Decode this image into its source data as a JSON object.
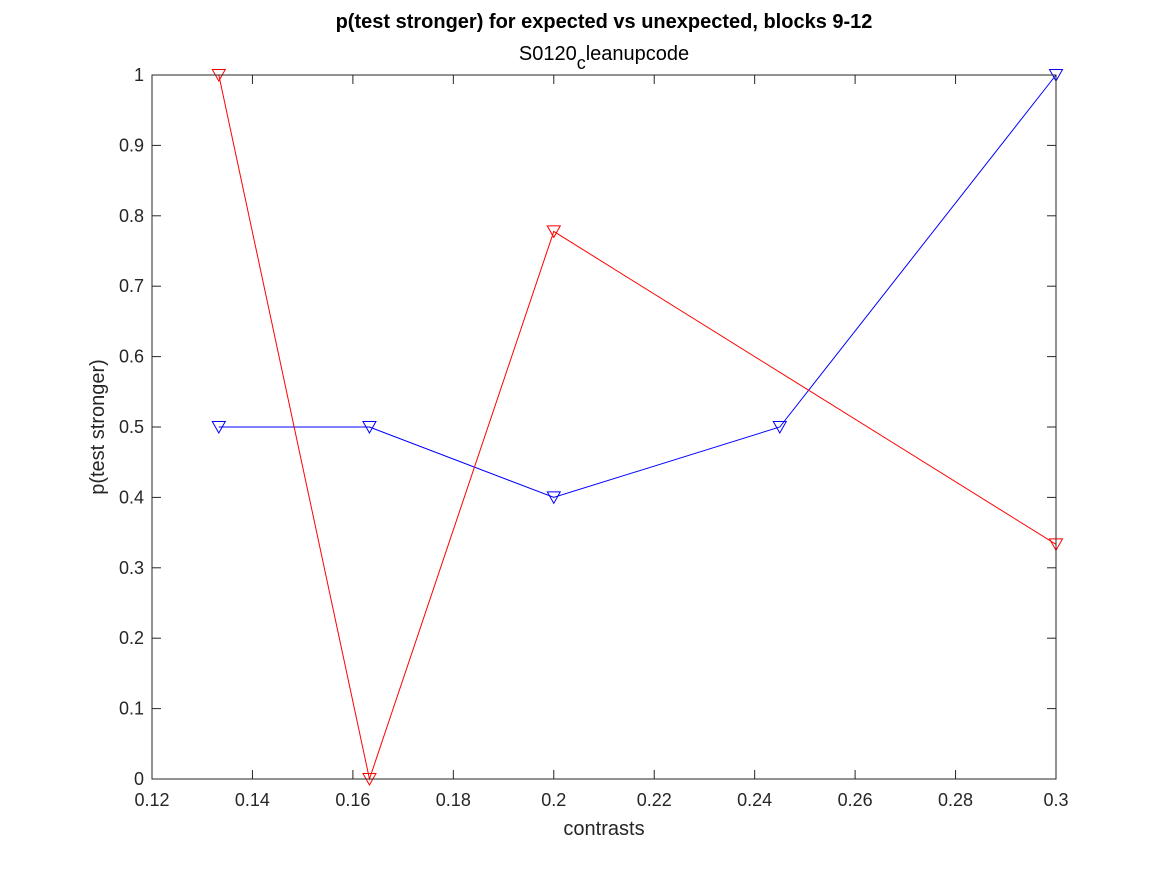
{
  "chart_data": {
    "type": "line",
    "title": "p(test stronger) for expected vs unexpected, blocks 9-12",
    "subtitle": {
      "prefix": "S0120",
      "subscript": "c",
      "suffix": "leanupcode"
    },
    "xlabel": "contrasts",
    "ylabel": "p(test stronger)",
    "xlim": [
      0.12,
      0.3
    ],
    "ylim": [
      0,
      1
    ],
    "xticks": [
      {
        "value": 0.12,
        "label": "0.12"
      },
      {
        "value": 0.14,
        "label": "0.14"
      },
      {
        "value": 0.16,
        "label": "0.16"
      },
      {
        "value": 0.18,
        "label": "0.18"
      },
      {
        "value": 0.2,
        "label": "0.2"
      },
      {
        "value": 0.22,
        "label": "0.22"
      },
      {
        "value": 0.24,
        "label": "0.24"
      },
      {
        "value": 0.26,
        "label": "0.26"
      },
      {
        "value": 0.28,
        "label": "0.28"
      },
      {
        "value": 0.3,
        "label": "0.3"
      }
    ],
    "yticks": [
      {
        "value": 0,
        "label": "0"
      },
      {
        "value": 0.1,
        "label": "0.1"
      },
      {
        "value": 0.2,
        "label": "0.2"
      },
      {
        "value": 0.3,
        "label": "0.3"
      },
      {
        "value": 0.4,
        "label": "0.4"
      },
      {
        "value": 0.5,
        "label": "0.5"
      },
      {
        "value": 0.6,
        "label": "0.6"
      },
      {
        "value": 0.7,
        "label": "0.7"
      },
      {
        "value": 0.8,
        "label": "0.8"
      },
      {
        "value": 0.9,
        "label": "0.9"
      },
      {
        "value": 1,
        "label": "1"
      }
    ],
    "grid": false,
    "marker": "triangle-down",
    "series": [
      {
        "color": "#0000ff",
        "x": [
          0.1333,
          0.1633,
          0.2,
          0.245,
          0.3
        ],
        "y": [
          0.5,
          0.5,
          0.4,
          0.5,
          1.0
        ]
      },
      {
        "color": "#ff0000",
        "x": [
          0.1333,
          0.1633,
          0.2,
          0.3
        ],
        "y": [
          1.0,
          0.0,
          0.7778,
          0.3333
        ]
      }
    ]
  }
}
